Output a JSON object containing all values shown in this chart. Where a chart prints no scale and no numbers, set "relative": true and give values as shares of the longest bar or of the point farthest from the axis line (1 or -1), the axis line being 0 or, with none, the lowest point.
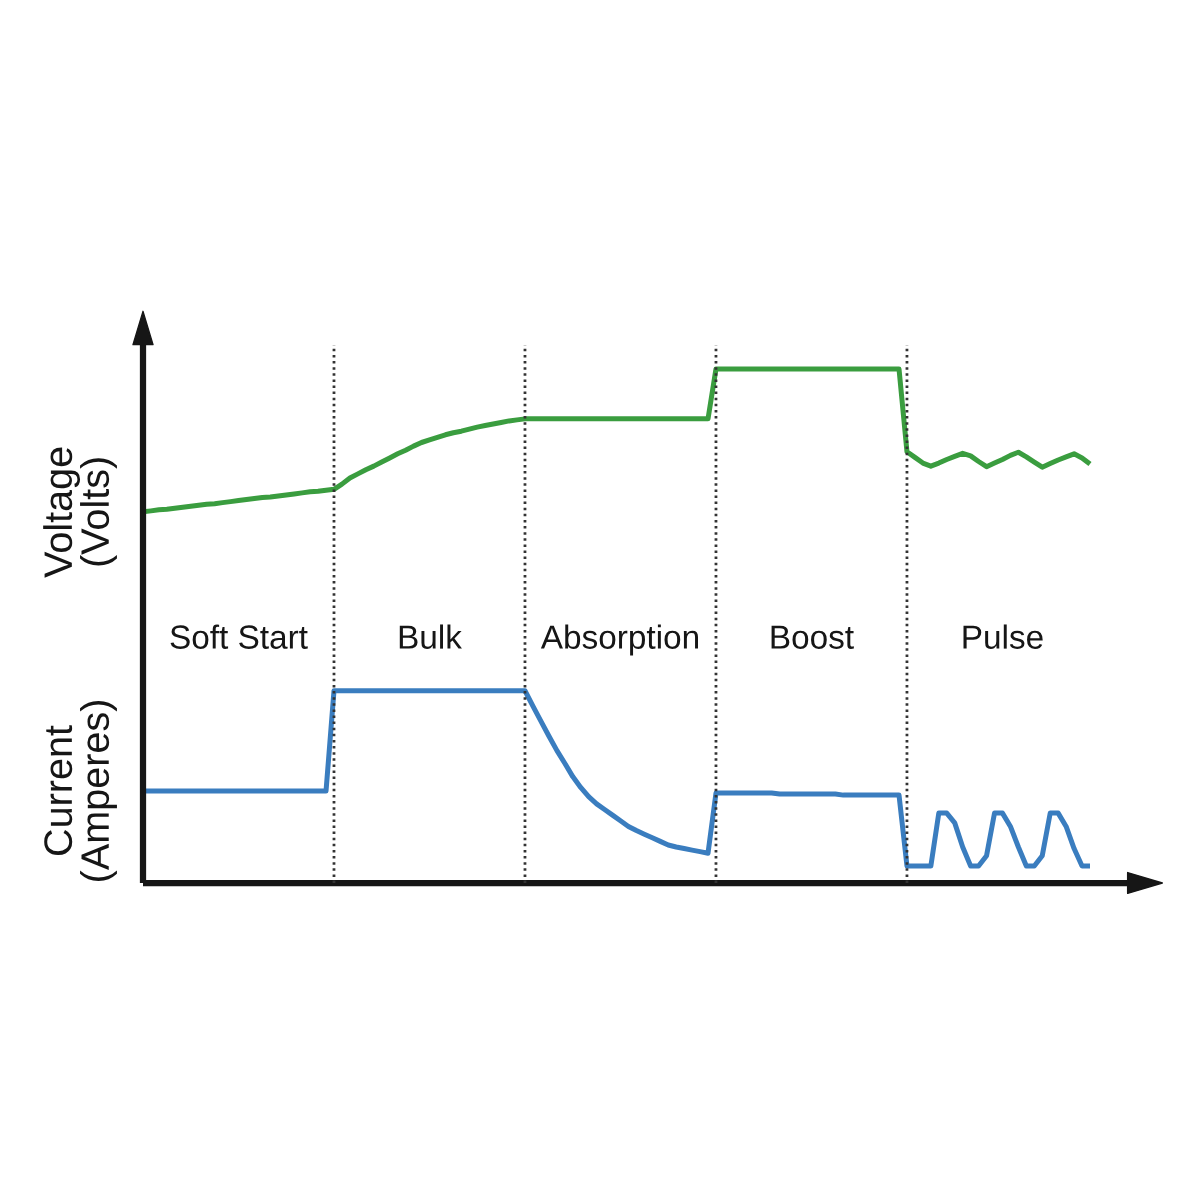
{
  "chart_data": {
    "type": "line",
    "relative": true,
    "categories": [
      null,
      null,
      null,
      null,
      null,
      null,
      null,
      null,
      null,
      null,
      null,
      null,
      "Soft Start",
      null,
      null,
      null,
      null,
      null,
      null,
      null,
      null,
      null,
      null,
      null,
      null,
      null,
      null,
      null,
      null,
      null,
      null,
      null,
      null,
      null,
      null,
      null,
      "Bulk",
      null,
      null,
      null,
      null,
      null,
      null,
      null,
      null,
      null,
      null,
      null,
      null,
      null,
      null,
      null,
      null,
      null,
      null,
      null,
      null,
      null,
      null,
      null,
      "Absorption",
      null,
      null,
      null,
      null,
      null,
      null,
      null,
      null,
      null,
      null,
      null,
      null,
      null,
      null,
      null,
      null,
      null,
      null,
      null,
      null,
      null,
      null,
      null,
      "Boost",
      null,
      null,
      null,
      null,
      null,
      null,
      null,
      null,
      null,
      null,
      null,
      null,
      null,
      null,
      null,
      null,
      null,
      null,
      null,
      null,
      null,
      null,
      null,
      "Pulse",
      null,
      null,
      null,
      null,
      null,
      null,
      null,
      null,
      null,
      null,
      null
    ],
    "series": [
      {
        "name": "Voltage\n(Volts)",
        "color": "#3a9d3f",
        "values": [
          0.722,
          0.724,
          0.726,
          0.727,
          0.729,
          0.731,
          0.733,
          0.735,
          0.737,
          0.738,
          0.74,
          0.742,
          0.744,
          0.746,
          0.748,
          0.75,
          0.751,
          0.753,
          0.755,
          0.757,
          0.759,
          0.761,
          0.762,
          0.764,
          0.766,
          0.776,
          0.788,
          0.796,
          0.804,
          0.811,
          0.819,
          0.827,
          0.835,
          0.842,
          0.85,
          0.857,
          0.862,
          0.867,
          0.872,
          0.876,
          0.879,
          0.883,
          0.887,
          0.89,
          0.893,
          0.896,
          0.899,
          0.901,
          0.903,
          0.903,
          0.903,
          0.903,
          0.903,
          0.903,
          0.903,
          0.903,
          0.903,
          0.903,
          0.903,
          0.903,
          0.903,
          0.903,
          0.903,
          0.903,
          0.903,
          0.903,
          0.903,
          0.903,
          0.903,
          0.903,
          0.903,
          0.903,
          1,
          1,
          1,
          1,
          1,
          1,
          1,
          1,
          1,
          1,
          1,
          1,
          1,
          1,
          1,
          1,
          1,
          1,
          1,
          1,
          1,
          1,
          1,
          1,
          0.839,
          0.828,
          0.817,
          0.811,
          0.817,
          0.824,
          0.83,
          0.836,
          0.831,
          0.82,
          0.81,
          0.817,
          0.824,
          0.832,
          0.838,
          0.829,
          0.819,
          0.809,
          0.816,
          0.823,
          0.829,
          0.835,
          0.827,
          0.815
        ]
      },
      {
        "name": "Current\n(Amperes)",
        "color": "#3a7dbf",
        "values": [
          0.179,
          0.179,
          0.179,
          0.179,
          0.179,
          0.179,
          0.179,
          0.179,
          0.179,
          0.179,
          0.179,
          0.179,
          0.179,
          0.179,
          0.179,
          0.179,
          0.179,
          0.179,
          0.179,
          0.179,
          0.179,
          0.179,
          0.179,
          0.179,
          0.374,
          0.374,
          0.374,
          0.374,
          0.374,
          0.374,
          0.374,
          0.374,
          0.374,
          0.374,
          0.374,
          0.374,
          0.374,
          0.374,
          0.374,
          0.374,
          0.374,
          0.374,
          0.374,
          0.374,
          0.374,
          0.374,
          0.374,
          0.374,
          0.374,
          0.344,
          0.315,
          0.286,
          0.258,
          0.233,
          0.207,
          0.186,
          0.168,
          0.154,
          0.143,
          0.132,
          0.121,
          0.11,
          0.102,
          0.095,
          0.088,
          0.081,
          0.074,
          0.07,
          0.067,
          0.064,
          0.061,
          0.058,
          0.175,
          0.175,
          0.175,
          0.175,
          0.175,
          0.175,
          0.175,
          0.175,
          0.173,
          0.173,
          0.173,
          0.173,
          0.173,
          0.173,
          0.173,
          0.173,
          0.171,
          0.171,
          0.171,
          0.171,
          0.171,
          0.171,
          0.171,
          0.171,
          0.033,
          0.033,
          0.033,
          0.033,
          0.136,
          0.136,
          0.117,
          0.07,
          0.033,
          0.033,
          0.053,
          0.136,
          0.136,
          0.11,
          0.07,
          0.033,
          0.033,
          0.053,
          0.136,
          0.136,
          0.11,
          0.067,
          0.033,
          0.033
        ]
      }
    ]
  }
}
